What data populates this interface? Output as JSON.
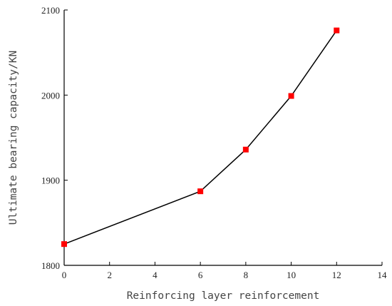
{
  "chart_data": {
    "type": "line",
    "title": "",
    "xlabel": "Reinforcing layer reinforcement",
    "ylabel": "Ultimate bearing capacity/KN",
    "xlim": [
      0,
      14
    ],
    "ylim": [
      1800,
      2100
    ],
    "xticks": [
      0,
      2,
      4,
      6,
      8,
      10,
      12,
      14
    ],
    "yticks": [
      1800,
      1900,
      2000,
      2100
    ],
    "grid": false,
    "legend": "none",
    "series": [
      {
        "x": [
          0,
          6,
          8,
          10,
          12
        ],
        "y": [
          1825,
          1887,
          1936,
          1999,
          2076
        ],
        "line_color": "#000000",
        "marker": "square",
        "marker_color": "#ff0000"
      }
    ]
  }
}
